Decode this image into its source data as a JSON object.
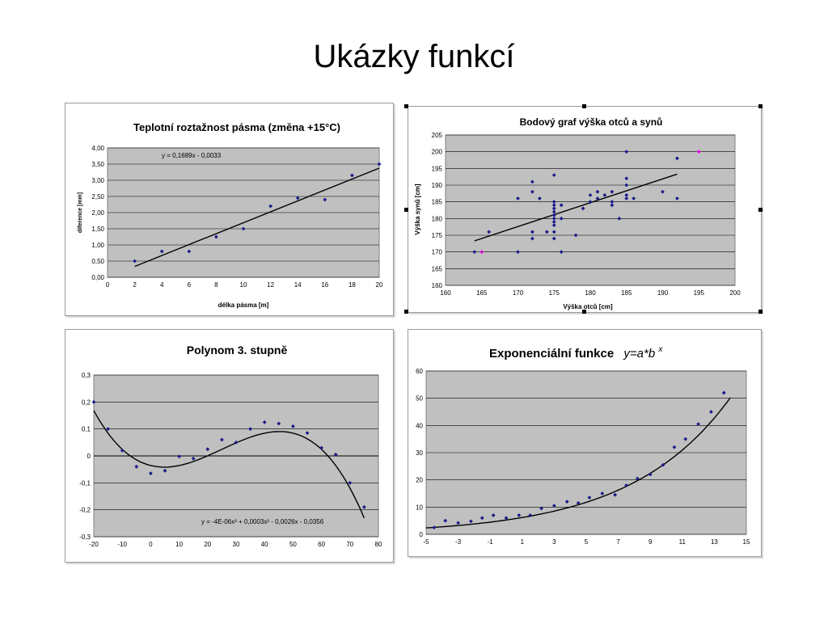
{
  "slide": {
    "title": "Ukázky funkcí"
  },
  "chart_data": [
    {
      "type": "scatter",
      "title": "Teplotní roztažnost pásma (změna +15°C)",
      "xlabel": "délka pásma [m]",
      "ylabel": "diference [mm]",
      "xlim": [
        0,
        20
      ],
      "ylim": [
        0,
        4
      ],
      "xticks": [
        "0",
        "2",
        "4",
        "6",
        "8",
        "10",
        "12",
        "14",
        "16",
        "18",
        "20"
      ],
      "yticks": [
        "0,00",
        "0,50",
        "1,00",
        "1,50",
        "2,00",
        "2,50",
        "3,00",
        "3,50",
        "4,00"
      ],
      "trendline_label": "y = 0,1689x - 0,0033",
      "trendline": {
        "type": "linear",
        "slope": 0.1689,
        "intercept": -0.0033,
        "x_range": [
          2,
          20
        ]
      },
      "grid": true,
      "point_color": "#1a1a8c",
      "series": [
        {
          "x": [
            2,
            4,
            6,
            8,
            10,
            12,
            14,
            16,
            18,
            20
          ],
          "y": [
            0.5,
            0.8,
            0.8,
            1.25,
            1.5,
            2.2,
            2.45,
            2.4,
            3.15,
            3.5
          ]
        }
      ]
    },
    {
      "type": "scatter",
      "title": "Bodový graf výška otců a synů",
      "xlabel": "Výška otců [cm]",
      "ylabel": "Výška synů [cm]",
      "xlim": [
        160,
        200
      ],
      "ylim": [
        160,
        205
      ],
      "xticks": [
        "160",
        "165",
        "170",
        "175",
        "180",
        "185",
        "190",
        "195",
        "200"
      ],
      "yticks": [
        "160",
        "165",
        "170",
        "175",
        "180",
        "185",
        "190",
        "195",
        "200",
        "205"
      ],
      "trendline": {
        "type": "linear",
        "points": [
          [
            164,
            173.3
          ],
          [
            192,
            193.3
          ]
        ]
      },
      "grid": true,
      "point_color": "#1a1a8c",
      "highlight_color": "#e000e0",
      "series": [
        {
          "x": [
            164,
            166,
            170,
            170,
            172,
            172,
            172,
            172,
            173,
            174,
            175,
            175,
            175,
            175,
            175,
            175,
            175,
            175,
            175,
            175,
            175,
            176,
            176,
            176,
            178,
            179,
            180,
            180,
            181,
            181,
            182,
            183,
            183,
            183,
            184,
            185,
            185,
            185,
            185,
            185,
            186,
            190,
            192,
            192
          ],
          "y": [
            170,
            176,
            170,
            186,
            191,
            188,
            176,
            174,
            186,
            176,
            193,
            185,
            184,
            183,
            182,
            181,
            180,
            179,
            178,
            176,
            174,
            184,
            180,
            170,
            175,
            183,
            187,
            185,
            188,
            186,
            187,
            188,
            185,
            184,
            180,
            200,
            192,
            190,
            187,
            186,
            186,
            188,
            198,
            186
          ]
        },
        {
          "x": [
            165,
            195
          ],
          "y": [
            170,
            200
          ],
          "highlight": true
        }
      ]
    },
    {
      "type": "scatter",
      "title": "Polynom 3. stupně",
      "xlim": [
        -20,
        80
      ],
      "ylim": [
        -0.3,
        0.3
      ],
      "xticks": [
        "-20",
        "-10",
        "0",
        "10",
        "20",
        "30",
        "40",
        "50",
        "60",
        "70",
        "80"
      ],
      "yticks": [
        "-0,3",
        "-0,2",
        "-0,1",
        "0",
        "0,1",
        "0,2",
        "0,3"
      ],
      "trendline_label": "y = -4E-06x³ + 0,0003x² - 0,0026x - 0,0356",
      "trendline": {
        "type": "cubic",
        "x_range": [
          -20,
          75
        ]
      },
      "grid": true,
      "point_color": "#1a1a8c",
      "series": [
        {
          "x": [
            -20,
            -15,
            -10,
            -5,
            0,
            5,
            10,
            15,
            20,
            25,
            30,
            35,
            40,
            45,
            50,
            55,
            60,
            65,
            70,
            75
          ],
          "y": [
            0.2,
            0.1,
            0.02,
            -0.04,
            -0.065,
            -0.055,
            -0.002,
            -0.01,
            0.025,
            0.06,
            0.05,
            0.1,
            0.125,
            0.12,
            0.11,
            0.085,
            0.03,
            0.005,
            -0.1,
            -0.19
          ]
        }
      ]
    },
    {
      "type": "scatter",
      "title": "Exponenciální funkce",
      "title_formula": "y=a*b",
      "title_formula_exponent": "x",
      "xlim": [
        -5,
        15
      ],
      "ylim": [
        0,
        60
      ],
      "xticks": [
        "-5",
        "-3",
        "-1",
        "1",
        "3",
        "5",
        "7",
        "9",
        "11",
        "13",
        "15"
      ],
      "yticks": [
        "0",
        "10",
        "20",
        "30",
        "40",
        "50",
        "60"
      ],
      "trendline": {
        "type": "exponential",
        "a": 5.25,
        "b": 1.175,
        "x_range": [
          -5,
          14
        ]
      },
      "grid": true,
      "point_color": "#1a1a8c",
      "series": [
        {
          "x": [
            -4.5,
            -3.8,
            -3,
            -2.2,
            -1.5,
            -0.8,
            0,
            0.8,
            1.5,
            2.2,
            3,
            3.8,
            4.5,
            5.2,
            6,
            6.8,
            7.5,
            8.2,
            9,
            9.8,
            10.5,
            11.2,
            12,
            12.8,
            13.6
          ],
          "y": [
            2.5,
            5,
            4.2,
            4.8,
            6,
            7,
            6,
            7,
            7,
            9.5,
            10.5,
            12,
            11.5,
            13.5,
            15,
            14.5,
            18,
            20.5,
            22,
            25.5,
            32,
            35,
            40.5,
            45,
            52
          ]
        }
      ]
    }
  ]
}
